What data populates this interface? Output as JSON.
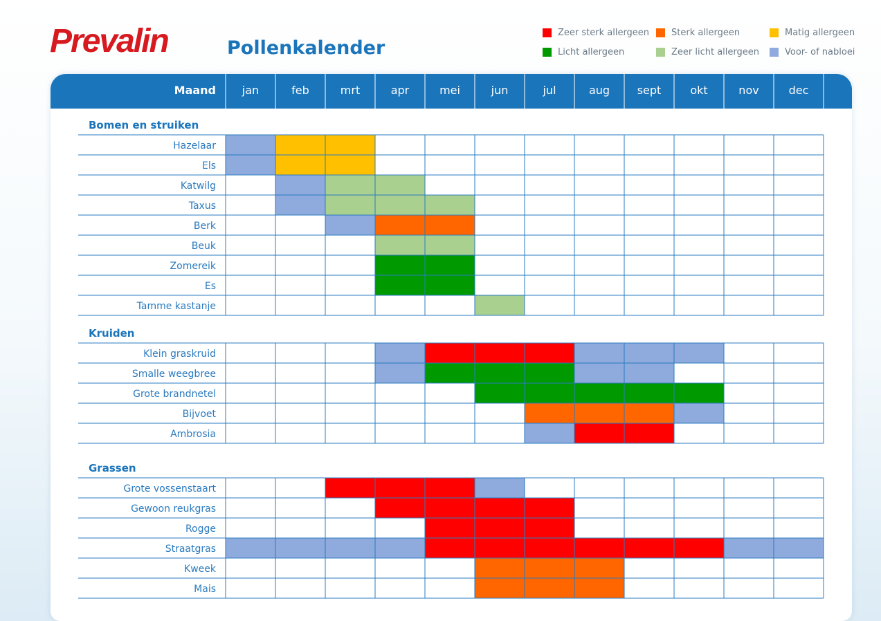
{
  "logo": {
    "prefix": "Pre",
    "suffix": "valin",
    "prefix_color": "#d71920",
    "suffix_color": "#d71920"
  },
  "title": "Pollenkalender",
  "legend": [
    {
      "code": "R",
      "label": "Zeer sterk allergeen",
      "color": "#ff0000"
    },
    {
      "code": "O",
      "label": "Sterk allergeen",
      "color": "#ff6600"
    },
    {
      "code": "Y",
      "label": "Matig allergeen",
      "color": "#ffc000"
    },
    {
      "code": "G",
      "label": "Licht allergeen",
      "color": "#009a00"
    },
    {
      "code": "L",
      "label": "Zeer licht allergeen",
      "color": "#a9d08e"
    },
    {
      "code": "B",
      "label": "Voor- of nabloei",
      "color": "#8faadc"
    }
  ],
  "chart_data": {
    "type": "table",
    "header_label": "Maand",
    "months": [
      "jan",
      "feb",
      "mrt",
      "apr",
      "mei",
      "jun",
      "jul",
      "aug",
      "sept",
      "okt",
      "nov",
      "dec"
    ],
    "sections": [
      {
        "title": "Bomen en struiken",
        "rows": [
          {
            "name": "Hazelaar",
            "months": [
              "B",
              "Y",
              "Y",
              "",
              "",
              "",
              "",
              "",
              "",
              "",
              "",
              ""
            ]
          },
          {
            "name": "Els",
            "months": [
              "B",
              "Y",
              "Y",
              "",
              "",
              "",
              "",
              "",
              "",
              "",
              "",
              ""
            ]
          },
          {
            "name": "Katwilg",
            "months": [
              "",
              "B",
              "L",
              "L",
              "",
              "",
              "",
              "",
              "",
              "",
              "",
              ""
            ]
          },
          {
            "name": "Taxus",
            "months": [
              "",
              "B",
              "L",
              "L",
              "L",
              "",
              "",
              "",
              "",
              "",
              "",
              ""
            ]
          },
          {
            "name": "Berk",
            "months": [
              "",
              "",
              "B",
              "O",
              "O",
              "",
              "",
              "",
              "",
              "",
              "",
              ""
            ]
          },
          {
            "name": "Beuk",
            "months": [
              "",
              "",
              "",
              "L",
              "L",
              "",
              "",
              "",
              "",
              "",
              "",
              ""
            ]
          },
          {
            "name": "Zomereik",
            "months": [
              "",
              "",
              "",
              "G",
              "G",
              "",
              "",
              "",
              "",
              "",
              "",
              ""
            ]
          },
          {
            "name": "Es",
            "months": [
              "",
              "",
              "",
              "G",
              "G",
              "",
              "",
              "",
              "",
              "",
              "",
              ""
            ]
          },
          {
            "name": "Tamme kastanje",
            "months": [
              "",
              "",
              "",
              "",
              "",
              "L",
              "",
              "",
              "",
              "",
              "",
              ""
            ]
          }
        ]
      },
      {
        "title": "Kruiden",
        "rows": [
          {
            "name": "Klein graskruid",
            "months": [
              "",
              "",
              "",
              "B",
              "R",
              "R",
              "R",
              "B",
              "B",
              "B",
              "",
              ""
            ]
          },
          {
            "name": "Smalle weegbree",
            "months": [
              "",
              "",
              "",
              "B",
              "G",
              "G",
              "G",
              "B",
              "B",
              "",
              "",
              ""
            ]
          },
          {
            "name": "Grote brandnetel",
            "months": [
              "",
              "",
              "",
              "",
              "",
              "G",
              "G",
              "G",
              "G",
              "G",
              "",
              ""
            ]
          },
          {
            "name": "Bijvoet",
            "months": [
              "",
              "",
              "",
              "",
              "",
              "",
              "O",
              "O",
              "O",
              "B",
              "",
              ""
            ]
          },
          {
            "name": "Ambrosia",
            "months": [
              "",
              "",
              "",
              "",
              "",
              "",
              "B",
              "R",
              "R",
              "",
              "",
              ""
            ]
          }
        ]
      },
      {
        "title": "Grassen",
        "rows": [
          {
            "name": "Grote vossenstaart",
            "months": [
              "",
              "",
              "R",
              "R",
              "R",
              "B",
              "",
              "",
              "",
              "",
              "",
              ""
            ]
          },
          {
            "name": "Gewoon reukgras",
            "months": [
              "",
              "",
              "",
              "R",
              "R",
              "R",
              "R",
              "",
              "",
              "",
              "",
              ""
            ]
          },
          {
            "name": "Rogge",
            "months": [
              "",
              "",
              "",
              "",
              "R",
              "R",
              "R",
              "",
              "",
              "",
              "",
              ""
            ]
          },
          {
            "name": "Straatgras",
            "months": [
              "B",
              "B",
              "B",
              "B",
              "R",
              "R",
              "R",
              "R",
              "R",
              "R",
              "B",
              "B"
            ]
          },
          {
            "name": "Kweek",
            "months": [
              "",
              "",
              "",
              "",
              "",
              "O",
              "O",
              "O",
              "",
              "",
              "",
              ""
            ]
          },
          {
            "name": "Mais",
            "months": [
              "",
              "",
              "",
              "",
              "",
              "O",
              "O",
              "O",
              "",
              "",
              "",
              ""
            ]
          }
        ]
      }
    ]
  }
}
